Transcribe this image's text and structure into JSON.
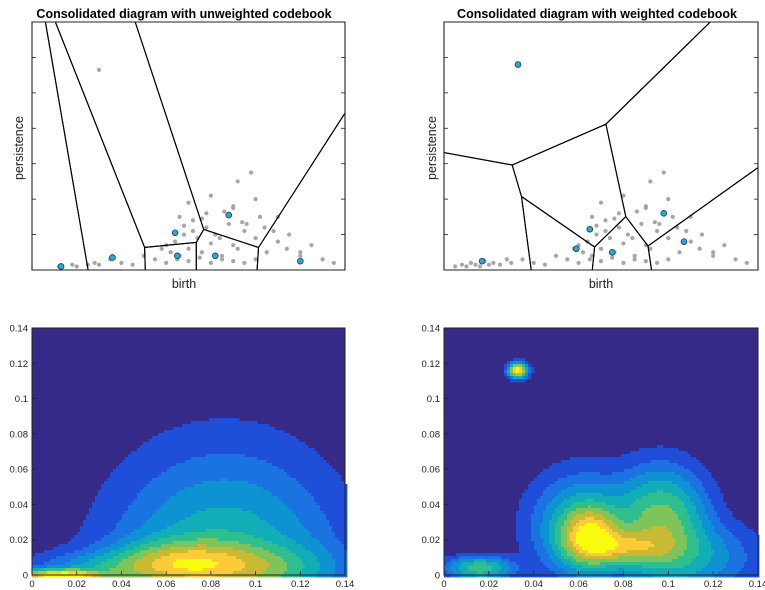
{
  "figure": {
    "panels": [
      "unweighted",
      "weighted"
    ]
  },
  "chart_data": [
    {
      "id": "scatter-unweighted",
      "type": "scatter",
      "title": "Consolidated diagram with unweighted codebook",
      "xlabel": "birth",
      "ylabel": "persistence",
      "xlim": [
        0,
        0.14
      ],
      "ylim": [
        0,
        0.14
      ],
      "ticks_labeled": false,
      "grid": false,
      "colors": {
        "points": "#a6a6a6",
        "centers": "#2aa8d8",
        "edges": "#000000"
      },
      "series": [
        {
          "role": "diagram points",
          "x": [
            0.012,
            0.018,
            0.02,
            0.025,
            0.028,
            0.03,
            0.035,
            0.04,
            0.045,
            0.05,
            0.055,
            0.058,
            0.06,
            0.062,
            0.064,
            0.066,
            0.068,
            0.07,
            0.072,
            0.074,
            0.076,
            0.078,
            0.08,
            0.082,
            0.085,
            0.088,
            0.09,
            0.092,
            0.095,
            0.1,
            0.105,
            0.11,
            0.115,
            0.12,
            0.125,
            0.13,
            0.135,
            0.06,
            0.065,
            0.07,
            0.075,
            0.08,
            0.085,
            0.09,
            0.095,
            0.1,
            0.066,
            0.072,
            0.078,
            0.084,
            0.09,
            0.096,
            0.102,
            0.108,
            0.114,
            0.12,
            0.07,
            0.08,
            0.09,
            0.1,
            0.11,
            0.068,
            0.076,
            0.086,
            0.094,
            0.104,
            0.092,
            0.098,
            0.03
          ],
          "y": [
            0.002,
            0.003,
            0.002,
            0.003,
            0.004,
            0.003,
            0.006,
            0.004,
            0.003,
            0.008,
            0.006,
            0.012,
            0.014,
            0.01,
            0.016,
            0.008,
            0.02,
            0.012,
            0.022,
            0.018,
            0.01,
            0.024,
            0.015,
            0.02,
            0.008,
            0.026,
            0.014,
            0.012,
            0.022,
            0.018,
            0.01,
            0.016,
            0.02,
            0.008,
            0.014,
            0.006,
            0.004,
            0.004,
            0.006,
            0.005,
            0.007,
            0.004,
            0.006,
            0.005,
            0.004,
            0.006,
            0.03,
            0.028,
            0.032,
            0.018,
            0.035,
            0.026,
            0.03,
            0.022,
            0.012,
            0.01,
            0.038,
            0.042,
            0.036,
            0.04,
            0.03,
            0.025,
            0.029,
            0.033,
            0.027,
            0.024,
            0.05,
            0.055,
            0.113
          ]
        },
        {
          "role": "codebook centers",
          "x": [
            0.013,
            0.036,
            0.064,
            0.065,
            0.082,
            0.088,
            0.12
          ],
          "y": [
            0.002,
            0.007,
            0.021,
            0.008,
            0.008,
            0.031,
            0.005
          ]
        }
      ]
    },
    {
      "id": "scatter-weighted",
      "type": "scatter",
      "title": "Consolidated diagram with weighted codebook",
      "xlabel": "birth",
      "ylabel": "persistence",
      "xlim": [
        0,
        0.14
      ],
      "ylim": [
        0,
        0.14
      ],
      "ticks_labeled": false,
      "grid": false,
      "colors": {
        "points": "#a6a6a6",
        "centers": "#2aa8d8",
        "edges": "#000000"
      },
      "series": [
        {
          "role": "diagram points",
          "x": [
            0.005,
            0.008,
            0.01,
            0.012,
            0.014,
            0.016,
            0.018,
            0.02,
            0.022,
            0.025,
            0.028,
            0.03,
            0.035,
            0.04,
            0.045,
            0.05,
            0.055,
            0.058,
            0.06,
            0.062,
            0.064,
            0.066,
            0.068,
            0.07,
            0.072,
            0.074,
            0.076,
            0.078,
            0.08,
            0.082,
            0.085,
            0.088,
            0.09,
            0.092,
            0.095,
            0.1,
            0.105,
            0.11,
            0.115,
            0.12,
            0.125,
            0.13,
            0.135,
            0.06,
            0.065,
            0.07,
            0.075,
            0.08,
            0.085,
            0.09,
            0.095,
            0.1,
            0.066,
            0.072,
            0.078,
            0.084,
            0.09,
            0.096,
            0.102,
            0.108,
            0.114,
            0.12,
            0.07,
            0.08,
            0.09,
            0.1,
            0.11,
            0.068,
            0.076,
            0.086,
            0.094,
            0.104,
            0.092,
            0.098
          ],
          "y": [
            0.002,
            0.003,
            0.002,
            0.004,
            0.003,
            0.002,
            0.005,
            0.003,
            0.004,
            0.003,
            0.006,
            0.004,
            0.006,
            0.004,
            0.003,
            0.008,
            0.006,
            0.012,
            0.014,
            0.01,
            0.016,
            0.008,
            0.02,
            0.012,
            0.022,
            0.018,
            0.01,
            0.024,
            0.015,
            0.02,
            0.008,
            0.026,
            0.014,
            0.012,
            0.022,
            0.018,
            0.01,
            0.016,
            0.02,
            0.008,
            0.014,
            0.006,
            0.004,
            0.004,
            0.006,
            0.005,
            0.007,
            0.004,
            0.006,
            0.005,
            0.004,
            0.006,
            0.03,
            0.028,
            0.032,
            0.018,
            0.035,
            0.026,
            0.03,
            0.022,
            0.012,
            0.01,
            0.038,
            0.042,
            0.036,
            0.04,
            0.03,
            0.025,
            0.029,
            0.033,
            0.027,
            0.024,
            0.05,
            0.055
          ]
        },
        {
          "role": "codebook centers",
          "x": [
            0.033,
            0.017,
            0.059,
            0.065,
            0.075,
            0.098,
            0.107
          ],
          "y": [
            0.116,
            0.005,
            0.012,
            0.023,
            0.01,
            0.032,
            0.016
          ]
        }
      ]
    },
    {
      "id": "contour-unweighted",
      "type": "heatmap",
      "title": "",
      "xlabel": "",
      "ylabel": "",
      "xlim": [
        0,
        0.14
      ],
      "ylim": [
        0,
        0.14
      ],
      "xticks": [
        "0",
        "0.02",
        "0.04",
        "0.06",
        "0.08",
        "0.1",
        "0.12",
        "0.14"
      ],
      "yticks": [
        "0",
        "0.02",
        "0.04",
        "0.06",
        "0.08",
        "0.1",
        "0.12",
        "0.14"
      ],
      "grid": false,
      "colormap": [
        "#352a87",
        "#1f4fd8",
        "#1a73e0",
        "#0d93d1",
        "#12aeb8",
        "#2fbf8f",
        "#7fc45b",
        "#c8bb33",
        "#fccc38",
        "#f9fb0e"
      ],
      "components": [
        {
          "mx": 0.086,
          "my": 0.0,
          "sx": 0.03,
          "sy": 0.04,
          "w": 0.35
        },
        {
          "mx": 0.068,
          "my": 0.008,
          "sx": 0.018,
          "sy": 0.008,
          "w": 0.45
        },
        {
          "mx": 0.045,
          "my": 0.004,
          "sx": 0.025,
          "sy": 0.006,
          "w": 0.25
        },
        {
          "mx": 0.1,
          "my": 0.005,
          "sx": 0.02,
          "sy": 0.008,
          "w": 0.25
        },
        {
          "mx": 0.013,
          "my": 0.0,
          "sx": 0.012,
          "sy": 0.002,
          "w": 1.0
        }
      ]
    },
    {
      "id": "contour-weighted",
      "type": "heatmap",
      "title": "",
      "xlabel": "",
      "ylabel": "",
      "xlim": [
        0,
        0.14
      ],
      "ylim": [
        0,
        0.14
      ],
      "xticks": [
        "0",
        "0.02",
        "0.04",
        "0.06",
        "0.08",
        "0.1",
        "0.12",
        "0.14"
      ],
      "yticks": [
        "0",
        "0.02",
        "0.04",
        "0.06",
        "0.08",
        "0.1",
        "0.12",
        "0.14"
      ],
      "grid": false,
      "colormap": [
        "#352a87",
        "#1f4fd8",
        "#1a73e0",
        "#0d93d1",
        "#12aeb8",
        "#2fbf8f",
        "#7fc45b",
        "#c8bb33",
        "#fccc38",
        "#f9fb0e"
      ],
      "components": [
        {
          "mx": 0.033,
          "my": 0.116,
          "sx": 0.0025,
          "sy": 0.0025,
          "w": 1.0
        },
        {
          "mx": 0.065,
          "my": 0.022,
          "sx": 0.008,
          "sy": 0.01,
          "w": 0.75
        },
        {
          "mx": 0.08,
          "my": 0.016,
          "sx": 0.012,
          "sy": 0.006,
          "w": 0.45
        },
        {
          "mx": 0.097,
          "my": 0.03,
          "sx": 0.012,
          "sy": 0.018,
          "w": 0.5
        },
        {
          "mx": 0.062,
          "my": 0.028,
          "sx": 0.014,
          "sy": 0.018,
          "w": 0.3
        },
        {
          "mx": 0.016,
          "my": 0.004,
          "sx": 0.009,
          "sy": 0.004,
          "w": 0.4
        },
        {
          "mx": 0.11,
          "my": 0.01,
          "sx": 0.018,
          "sy": 0.012,
          "w": 0.2
        }
      ]
    }
  ]
}
